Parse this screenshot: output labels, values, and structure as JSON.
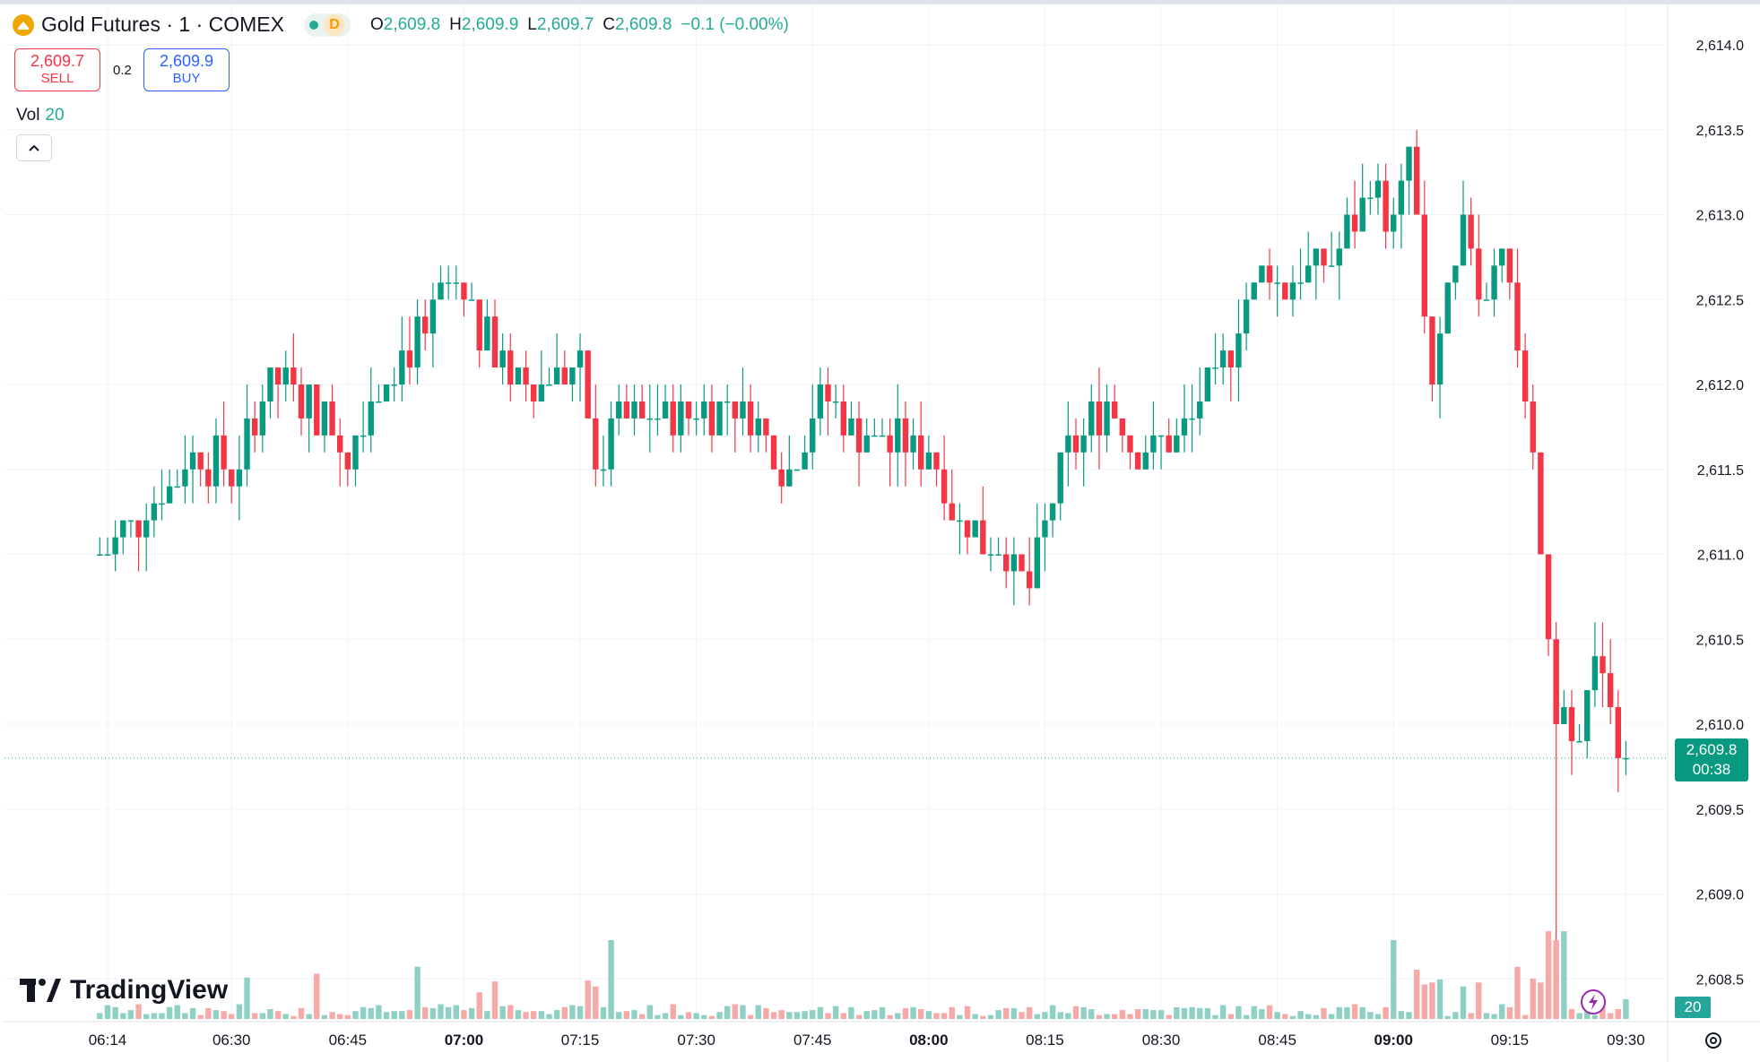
{
  "header": {
    "symbol_title": "Gold Futures · 1 · COMEX",
    "indicator_d": "D",
    "ohlc": {
      "o_label": "O",
      "o": "2,609.8",
      "h_label": "H",
      "h": "2,609.9",
      "l_label": "L",
      "l": "2,609.7",
      "c_label": "C",
      "c": "2,609.8",
      "change": "−0.1 (−0.00%)"
    }
  },
  "trade": {
    "sell_price": "2,609.7",
    "sell_label": "SELL",
    "spread": "0.2",
    "buy_price": "2,609.9",
    "buy_label": "BUY"
  },
  "volume": {
    "label": "Vol",
    "value": "20"
  },
  "branding": {
    "logo_text": "TradingView"
  },
  "price_tag": {
    "price": "2,609.8",
    "countdown": "00:38"
  },
  "colors": {
    "up": "#089981",
    "down": "#f23645",
    "vol_up": "#8fd0c4",
    "vol_down": "#f7a9a7",
    "grid": "#f0f3fa",
    "accent": "#22ab94"
  },
  "icons": [
    "gold-coin-icon",
    "collapse-chevron-icon",
    "tradingview-logo-icon",
    "lightning-icon",
    "settings-gear-icon"
  ],
  "chart_data": {
    "type": "candlestick",
    "title": "Gold Futures · 1 · COMEX",
    "interval_minutes": 1,
    "x_ticks": [
      "06:14",
      "06:30",
      "06:45",
      "07:00",
      "07:15",
      "07:30",
      "07:45",
      "08:00",
      "08:15",
      "08:30",
      "08:45",
      "09:00",
      "09:15",
      "09:30"
    ],
    "y_ticks": [
      "2,608.5",
      "2,609.0",
      "2,609.5",
      "2,610.0",
      "2,610.5",
      "2,611.0",
      "2,611.5",
      "2,612.0",
      "2,612.5",
      "2,613.0",
      "2,613.5",
      "2,614.0"
    ],
    "ylim": [
      2608.3,
      2614.1
    ],
    "volume_axis_max": 100,
    "last_price": 2609.8,
    "last_volume": 20,
    "grid": true,
    "series": [
      {
        "name": "Price",
        "anchors": [
          [
            "06:13",
            2611.0
          ],
          [
            "06:20",
            2611.3
          ],
          [
            "06:25",
            2611.6
          ],
          [
            "06:30",
            2611.5
          ],
          [
            "06:35",
            2612.0
          ],
          [
            "06:40",
            2611.9
          ],
          [
            "06:45",
            2611.6
          ],
          [
            "06:50",
            2612.1
          ],
          [
            "06:55",
            2612.3
          ],
          [
            "06:58",
            2612.6
          ],
          [
            "07:05",
            2612.1
          ],
          [
            "07:10",
            2612.0
          ],
          [
            "07:15",
            2612.1
          ],
          [
            "07:17",
            2611.5
          ],
          [
            "07:20",
            2611.8
          ],
          [
            "07:28",
            2611.8
          ],
          [
            "07:35",
            2611.9
          ],
          [
            "07:42",
            2611.5
          ],
          [
            "07:46",
            2611.9
          ],
          [
            "07:52",
            2611.7
          ],
          [
            "08:00",
            2611.6
          ],
          [
            "08:04",
            2611.2
          ],
          [
            "08:10",
            2611.0
          ],
          [
            "08:13",
            2610.8
          ],
          [
            "08:18",
            2611.6
          ],
          [
            "08:23",
            2611.9
          ],
          [
            "08:27",
            2611.6
          ],
          [
            "08:32",
            2611.7
          ],
          [
            "08:37",
            2612.0
          ],
          [
            "08:43",
            2612.7
          ],
          [
            "08:46",
            2612.6
          ],
          [
            "08:52",
            2612.7
          ],
          [
            "08:57",
            2613.2
          ],
          [
            "09:00",
            2612.9
          ],
          [
            "09:02",
            2613.4
          ],
          [
            "09:05",
            2612.0
          ],
          [
            "09:09",
            2612.9
          ],
          [
            "09:12",
            2612.5
          ],
          [
            "09:14",
            2612.9
          ],
          [
            "09:17",
            2612.0
          ],
          [
            "09:19",
            2611.0
          ],
          [
            "09:21",
            2610.1
          ],
          [
            "09:24",
            2610.0
          ],
          [
            "09:27",
            2610.4
          ],
          [
            "09:29",
            2609.9
          ],
          [
            "09:30",
            2609.8
          ]
        ]
      },
      {
        "name": "Vol",
        "note": "volume histogram at bottom of pane"
      }
    ],
    "current_bar": {
      "open": 2609.8,
      "high": 2609.9,
      "low": 2609.7,
      "close": 2609.8,
      "change": -0.1,
      "change_pct": "-0.00%"
    }
  }
}
